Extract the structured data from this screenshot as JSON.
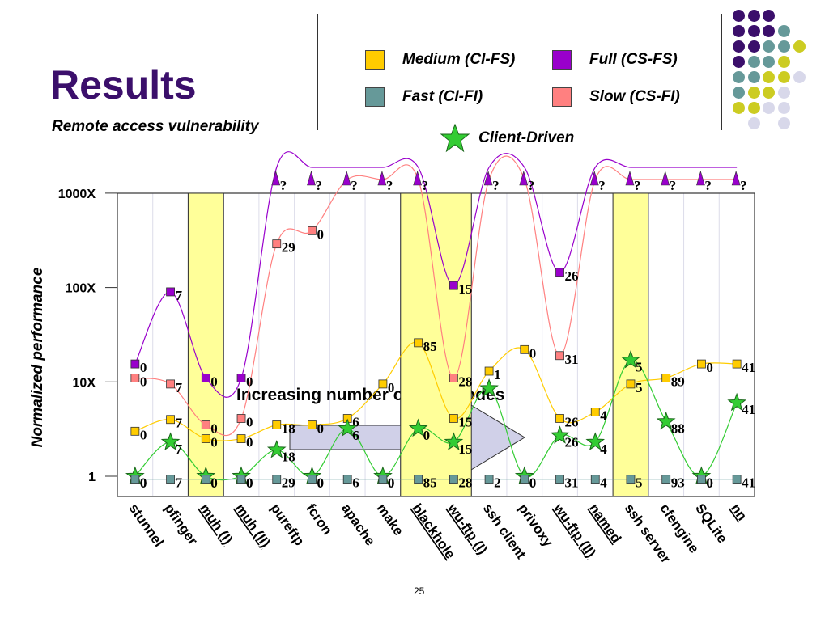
{
  "slide": {
    "title": "Results",
    "subtitle": "Remote access vulnerability",
    "page_number": "25"
  },
  "legend": {
    "items": [
      {
        "key": "medium",
        "label": "Medium (CI-FS)",
        "color": "#ffcc00",
        "marker": "square"
      },
      {
        "key": "full",
        "label": "Full (CS-FS)",
        "color": "#9900cc",
        "marker": "square"
      },
      {
        "key": "fast",
        "label": "Fast (CI-FI)",
        "color": "#669999",
        "marker": "square"
      },
      {
        "key": "slow",
        "label": "Slow (CS-FI)",
        "color": "#ff8080",
        "marker": "square"
      },
      {
        "key": "client",
        "label": "Client-Driven",
        "color": "#33cc33",
        "marker": "star"
      }
    ]
  },
  "decor_dots": {
    "colors": {
      "P": "#3b0f6b",
      "T": "#669999",
      "Y": "#cccc22",
      "L": "#d8d8ea"
    },
    "rows": [
      "PPP",
      "PPPT",
      "PPTTY",
      "PTTY",
      "TTYYL",
      "TYYL",
      "YYLL",
      "_L_L"
    ]
  },
  "chart_data": {
    "type": "line",
    "title": "",
    "xlabel": "",
    "ylabel": "Normalized performance",
    "yscale": "log",
    "ylim": [
      1,
      1000
    ],
    "yticks": [
      {
        "value": 1,
        "label": "1"
      },
      {
        "value": 10,
        "label": "10X"
      },
      {
        "value": 100,
        "label": "100X"
      },
      {
        "value": 1000,
        "label": "1000X"
      }
    ],
    "categories": [
      "stunnel",
      "pfinger",
      "muh (I)",
      "muh (II)",
      "pureftp",
      "fcron",
      "apache",
      "make",
      "blackhole",
      "wu-ftp (I)",
      "ssh client",
      "privoxy",
      "wu-ftp (II)",
      "named",
      "ssh server",
      "cfengine",
      "SQLite",
      "nn"
    ],
    "underlined_categories": [
      "muh (I)",
      "muh (II)",
      "blackhole",
      "wu-ftp (I)",
      "wu-ftp (II)",
      "named",
      "nn"
    ],
    "highlighted_categories": [
      "muh (I)",
      "blackhole",
      "wu-ftp (I)",
      "ssh server"
    ],
    "highlight_color": "#ffff99",
    "timeout_marker_label": "?",
    "series": [
      {
        "name": "Full (CS-FS)",
        "key": "full",
        "color": "#9900cc",
        "marker": "square",
        "values": [
          15.5,
          90,
          11,
          11,
          null,
          null,
          null,
          null,
          null,
          105,
          null,
          null,
          145,
          null,
          null,
          null,
          null,
          null
        ],
        "labels": [
          "0",
          "7",
          "0",
          "0",
          null,
          null,
          null,
          null,
          null,
          "15",
          null,
          null,
          "26",
          null,
          null,
          null,
          null,
          null
        ],
        "timeout": [
          false,
          false,
          false,
          false,
          true,
          true,
          true,
          true,
          true,
          false,
          true,
          true,
          false,
          true,
          true,
          true,
          true,
          true
        ]
      },
      {
        "name": "Slow (CS-FI)",
        "key": "slow",
        "color": "#ff8080",
        "marker": "square",
        "values": [
          11,
          9.5,
          3.5,
          4.1,
          290,
          400,
          null,
          null,
          null,
          11,
          null,
          null,
          19,
          null,
          null,
          null,
          null,
          null
        ],
        "labels": [
          "0",
          "7",
          "0",
          "0",
          "29",
          "0",
          null,
          null,
          null,
          "28",
          null,
          null,
          "31",
          null,
          null,
          null,
          null,
          null
        ],
        "timeout": [
          false,
          false,
          false,
          false,
          false,
          false,
          true,
          true,
          true,
          false,
          true,
          true,
          false,
          true,
          true,
          true,
          true,
          true
        ]
      },
      {
        "name": "Medium (CI-FS)",
        "key": "medium",
        "color": "#ffcc00",
        "marker": "square",
        "values": [
          3.0,
          4.0,
          2.5,
          2.5,
          3.5,
          3.5,
          4.1,
          9.5,
          26,
          4.1,
          13,
          22,
          4.1,
          4.8,
          9.5,
          11,
          15.5,
          15.5
        ],
        "labels": [
          "0",
          "7",
          "0",
          "0",
          "18",
          "0",
          "6",
          "0",
          "85",
          "15",
          "1",
          "0",
          "26",
          "4",
          "5",
          "89",
          "0",
          "41"
        ]
      },
      {
        "name": "Client-Driven",
        "key": "client",
        "color": "#33cc33",
        "marker": "star",
        "values": [
          1.0,
          2.3,
          1.0,
          1.0,
          1.9,
          1.0,
          3.2,
          1.0,
          3.2,
          2.3,
          8.5,
          1.0,
          2.7,
          2.3,
          17,
          3.8,
          1.0,
          6.0
        ],
        "labels": [
          "0",
          "7",
          "0",
          "0",
          "18",
          "0",
          "6",
          "0",
          "0",
          "15",
          null,
          "0",
          "26",
          "4",
          "5",
          "88",
          "0",
          "41"
        ]
      },
      {
        "name": "Fast (CI-FI)",
        "key": "fast",
        "color": "#669999",
        "marker": "square",
        "values": [
          0.93,
          0.93,
          0.93,
          0.93,
          0.93,
          0.93,
          0.93,
          0.93,
          0.93,
          0.93,
          0.93,
          0.93,
          0.93,
          0.93,
          0.93,
          0.93,
          0.93,
          0.93
        ],
        "labels": [
          "0",
          "7",
          "0",
          "0",
          "29",
          "0",
          "6",
          "0",
          "85",
          "28",
          "2",
          "0",
          "31",
          "4",
          "5",
          "93",
          "0",
          "41"
        ]
      }
    ],
    "annotations": [
      {
        "text": "Increasing number of CFG nodes",
        "type": "arrow-right"
      }
    ],
    "grid": true,
    "legend_position": "top"
  }
}
